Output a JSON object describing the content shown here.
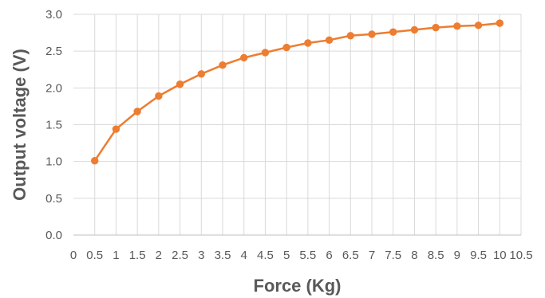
{
  "chart_data": {
    "type": "line",
    "title": "",
    "xlabel": "Force (Kg)",
    "ylabel": "Output voltage (V)",
    "x_ticks": [
      "0",
      "0.5",
      "1",
      "1.5",
      "2",
      "2.5",
      "3",
      "3.5",
      "4",
      "4.5",
      "5",
      "5.5",
      "6",
      "6.5",
      "7",
      "7.5",
      "8",
      "8.5",
      "9",
      "9.5",
      "10",
      "10.5"
    ],
    "y_ticks": [
      "0.0",
      "0.5",
      "1.0",
      "1.5",
      "2.0",
      "2.5",
      "3.0"
    ],
    "xlim": [
      0,
      10.5
    ],
    "ylim": [
      0,
      3.0
    ],
    "grid": true,
    "legend": "none",
    "series": [
      {
        "color": "#ed7d31",
        "marker": "circle",
        "x": [
          0.5,
          1,
          1.5,
          2,
          2.5,
          3,
          3.5,
          4,
          4.5,
          5,
          5.5,
          6,
          6.5,
          7,
          7.5,
          8,
          8.5,
          9,
          9.5,
          10
        ],
        "y": [
          1.01,
          1.44,
          1.68,
          1.89,
          2.05,
          2.19,
          2.31,
          2.41,
          2.48,
          2.55,
          2.61,
          2.65,
          2.71,
          2.73,
          2.76,
          2.79,
          2.82,
          2.84,
          2.85,
          2.88
        ]
      }
    ]
  }
}
